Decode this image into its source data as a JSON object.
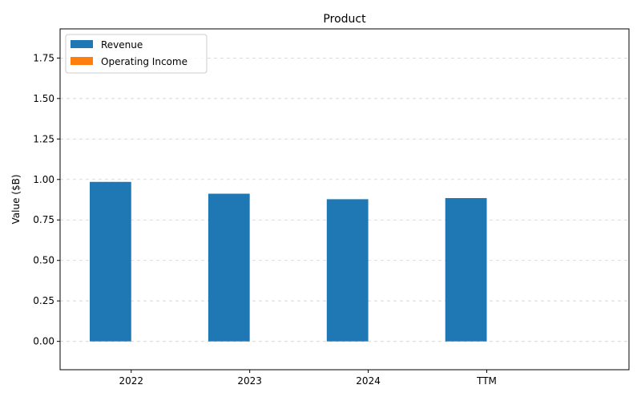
{
  "chart_data": {
    "type": "bar",
    "title": "Product",
    "xlabel": "",
    "ylabel": "Value ($B)",
    "categories": [
      "2022",
      "2023",
      "2024",
      "TTM"
    ],
    "series": [
      {
        "name": "Revenue",
        "values": [
          0.985,
          0.912,
          0.878,
          0.885
        ],
        "color": "#1f77b4"
      },
      {
        "name": "Operating Income",
        "values": [
          0.0,
          0.0,
          0.0,
          0.0
        ],
        "color": "#ff7f0e"
      }
    ],
    "ylim": [
      -0.175,
      1.93
    ],
    "yticks": [
      "0.00",
      "0.25",
      "0.50",
      "0.75",
      "1.00",
      "1.25",
      "1.50",
      "1.75"
    ],
    "grid": "y dashed",
    "legend_position": "top-left"
  }
}
